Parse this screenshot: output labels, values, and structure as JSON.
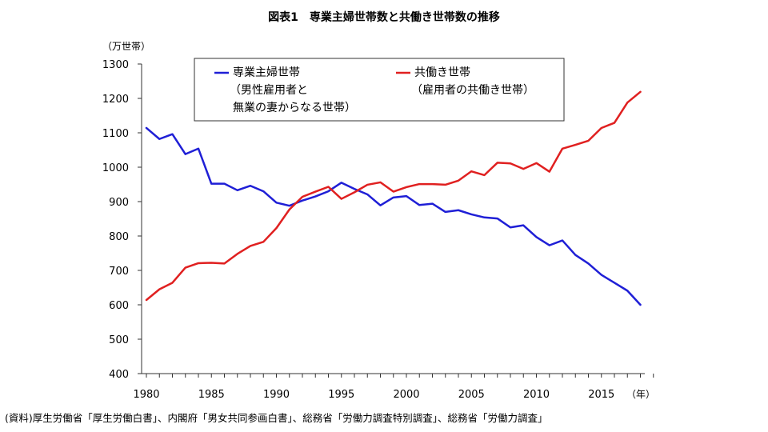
{
  "chart_data": {
    "type": "line",
    "title": "図表1　専業主婦世帯数と共働き世帯数の推移",
    "ylabel": "（万世帯）",
    "xlabel": "（年）",
    "ylim": [
      400,
      1300
    ],
    "yticks": [
      400,
      500,
      600,
      700,
      800,
      900,
      1000,
      1100,
      1200,
      1300
    ],
    "xlim": [
      1980,
      2019
    ],
    "xticks": [
      1980,
      1985,
      1990,
      1995,
      2000,
      2005,
      2010,
      2015
    ],
    "x": [
      1980,
      1981,
      1982,
      1983,
      1984,
      1985,
      1986,
      1987,
      1988,
      1989,
      1990,
      1991,
      1992,
      1993,
      1994,
      1995,
      1996,
      1997,
      1998,
      1999,
      2000,
      2001,
      2002,
      2003,
      2004,
      2005,
      2006,
      2007,
      2008,
      2009,
      2010,
      2011,
      2012,
      2013,
      2014,
      2015,
      2016,
      2017,
      2018
    ],
    "series": [
      {
        "name": "専業主婦世帯",
        "legend_lines": [
          "専業主婦世帯",
          "（男性雇用者と",
          "無業の妻からなる世帯）"
        ],
        "color": "#1f1fd6",
        "values": [
          1114,
          1082,
          1096,
          1038,
          1054,
          952,
          952,
          933,
          946,
          930,
          897,
          888,
          903,
          915,
          930,
          955,
          937,
          921,
          889,
          912,
          916,
          890,
          894,
          870,
          875,
          863,
          854,
          851,
          825,
          831,
          797,
          773,
          787,
          745,
          720,
          687,
          664,
          641,
          600
        ]
      },
      {
        "name": "共働き世帯",
        "legend_lines": [
          "共働き世帯",
          "（雇用者の共働き世帯）"
        ],
        "color": "#e02020",
        "values": [
          614,
          645,
          664,
          708,
          721,
          722,
          720,
          748,
          771,
          783,
          823,
          877,
          914,
          929,
          943,
          908,
          927,
          949,
          956,
          929,
          942,
          951,
          951,
          949,
          961,
          988,
          977,
          1013,
          1011,
          995,
          1012,
          987,
          1054,
          1065,
          1077,
          1114,
          1129,
          1188,
          1219
        ]
      }
    ]
  },
  "source_note": "(資料)厚生労働省「厚生労働白書」、内閣府「男女共同参画白書」、総務省「労働力調査特別調査」、総務省「労働力調査」"
}
